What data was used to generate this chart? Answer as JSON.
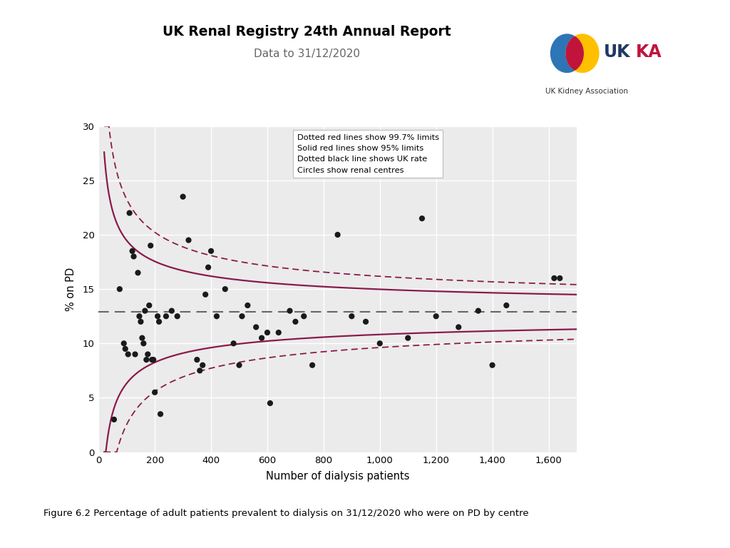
{
  "title": "UK Renal Registry 24th Annual Report",
  "subtitle": "Data to 31/12/2020",
  "xlabel": "Number of dialysis patients",
  "ylabel": "% on PD",
  "xlim": [
    0,
    1700
  ],
  "ylim": [
    0,
    30
  ],
  "xticks": [
    0,
    200,
    400,
    600,
    800,
    1000,
    1200,
    1400,
    1600
  ],
  "yticks": [
    0,
    5,
    10,
    15,
    20,
    25,
    30
  ],
  "uk_rate": 12.9,
  "background_color": "#ebebeb",
  "scatter_color": "#1a1a1a",
  "scatter_size": 35,
  "crimson": "#8b1a4a",
  "dashed_gray": "#666666",
  "legend_text": [
    "Dotted red lines show 99.7% limits",
    "Solid red lines show 95% limits",
    "Dotted black line shows UK rate",
    "Circles show renal centres"
  ],
  "scatter_x": [
    55,
    75,
    90,
    95,
    105,
    110,
    120,
    125,
    130,
    140,
    145,
    150,
    155,
    160,
    165,
    170,
    175,
    180,
    185,
    190,
    195,
    200,
    210,
    215,
    220,
    240,
    260,
    280,
    300,
    320,
    350,
    360,
    370,
    380,
    390,
    400,
    420,
    450,
    480,
    500,
    510,
    530,
    560,
    580,
    600,
    610,
    640,
    680,
    700,
    730,
    760,
    850,
    900,
    950,
    1000,
    1100,
    1150,
    1200,
    1280,
    1350,
    1400,
    1450,
    1620,
    1640
  ],
  "scatter_y": [
    3.0,
    15.0,
    10.0,
    9.5,
    9.0,
    22.0,
    18.5,
    18.0,
    9.0,
    16.5,
    12.5,
    12.0,
    10.5,
    10.0,
    13.0,
    8.5,
    9.0,
    13.5,
    19.0,
    8.5,
    8.5,
    5.5,
    12.5,
    12.0,
    3.5,
    12.5,
    13.0,
    12.5,
    23.5,
    19.5,
    8.5,
    7.5,
    8.0,
    14.5,
    17.0,
    18.5,
    12.5,
    15.0,
    10.0,
    8.0,
    12.5,
    13.5,
    11.5,
    10.5,
    11.0,
    4.5,
    11.0,
    13.0,
    12.0,
    12.5,
    8.0,
    20.0,
    12.5,
    12.0,
    10.0,
    10.5,
    21.5,
    12.5,
    11.5,
    13.0,
    8.0,
    13.5,
    16.0,
    16.0
  ],
  "figure_caption": "Figure 6.2 Percentage of adult patients prevalent to dialysis on 31/12/2020 who were on PD by centre",
  "logo_colors": {
    "blue": "#2e75b6",
    "orange": "#ffc000",
    "pink": "#c0143c",
    "U_color": "#1f3864",
    "K1_color": "#1f3864",
    "K2_color": "#c0143c",
    "A_color": "#c0143c"
  }
}
